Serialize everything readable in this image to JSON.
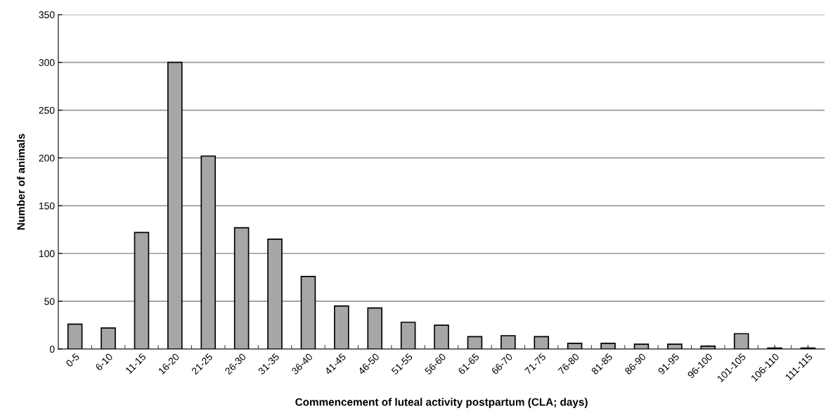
{
  "chart_data": {
    "type": "bar",
    "xlabel": "Commencement of luteal activity postpartum (CLA; days)",
    "ylabel": "Number of animals",
    "categories": [
      "0-5",
      "6-10",
      "11-15",
      "16-20",
      "21-25",
      "26-30",
      "31-35",
      "36-40",
      "41-45",
      "46-50",
      "51-55",
      "56-60",
      "61-65",
      "66-70",
      "71-75",
      "76-80",
      "81-85",
      "86-90",
      "91-95",
      "96-100",
      "101-105",
      "106-110",
      "111-115"
    ],
    "values": [
      26,
      22,
      122,
      300,
      202,
      127,
      115,
      76,
      45,
      43,
      28,
      25,
      13,
      14,
      13,
      6,
      6,
      5,
      5,
      3,
      16,
      1,
      1
    ],
    "color": "#a6a6a6",
    "ylim": [
      0,
      350
    ],
    "yticks": [
      0,
      50,
      100,
      150,
      200,
      250,
      300,
      350
    ],
    "grid": "y"
  }
}
